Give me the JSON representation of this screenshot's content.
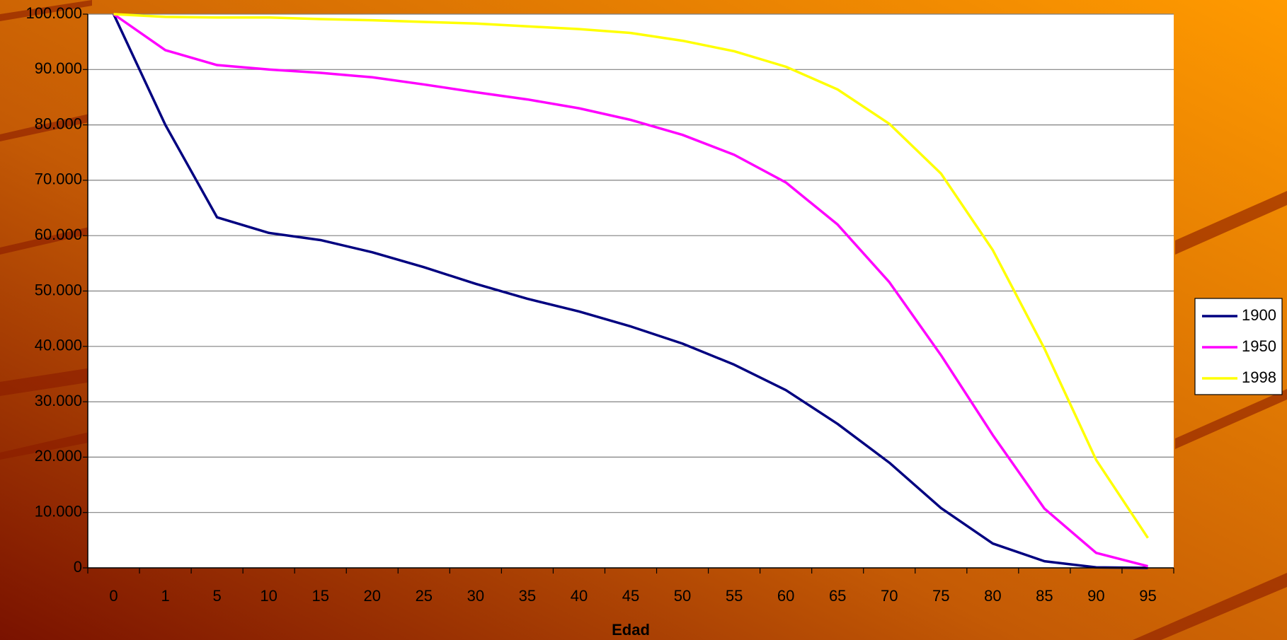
{
  "chart_data": {
    "type": "line",
    "x_label": "Edad",
    "categories": [
      "0",
      "1",
      "5",
      "10",
      "15",
      "20",
      "25",
      "30",
      "35",
      "40",
      "45",
      "50",
      "55",
      "60",
      "65",
      "70",
      "75",
      "80",
      "85",
      "90",
      "95"
    ],
    "series": [
      {
        "name": "1900",
        "color": "#000080",
        "values": [
          100000,
          80000,
          63300,
          60500,
          59200,
          57000,
          54300,
          51300,
          48600,
          46300,
          43600,
          40500,
          36700,
          32100,
          26000,
          19000,
          10800,
          4400,
          1200,
          100,
          0
        ]
      },
      {
        "name": "1950",
        "color": "#ff00ff",
        "values": [
          100000,
          93500,
          90800,
          90000,
          89400,
          88600,
          87300,
          85900,
          84600,
          83000,
          80900,
          78200,
          74600,
          69600,
          62000,
          51600,
          38400,
          24000,
          10700,
          2700,
          300
        ]
      },
      {
        "name": "1998",
        "color": "#ffff00",
        "values": [
          100000,
          99500,
          99400,
          99400,
          99100,
          98900,
          98600,
          98300,
          97800,
          97300,
          96600,
          95200,
          93300,
          90500,
          86400,
          80200,
          71200,
          57400,
          39600,
          19500,
          5400
        ]
      }
    ],
    "ylim": [
      0,
      100000
    ],
    "yticks": [
      0,
      {
        "value": 10000,
        "label": "10.000"
      },
      {
        "value": 20000,
        "label": "20.000"
      },
      {
        "value": 30000,
        "label": "30.000"
      },
      {
        "value": 40000,
        "label": "40.000"
      },
      {
        "value": 50000,
        "label": "50.000"
      },
      {
        "value": 60000,
        "label": "60.000"
      },
      {
        "value": 70000,
        "label": "70.000"
      },
      {
        "value": 80000,
        "label": "80.000"
      },
      {
        "value": 90000,
        "label": "90.000"
      },
      {
        "value": 100000,
        "label": "100.000"
      }
    ],
    "grid": true,
    "legend": "right"
  }
}
